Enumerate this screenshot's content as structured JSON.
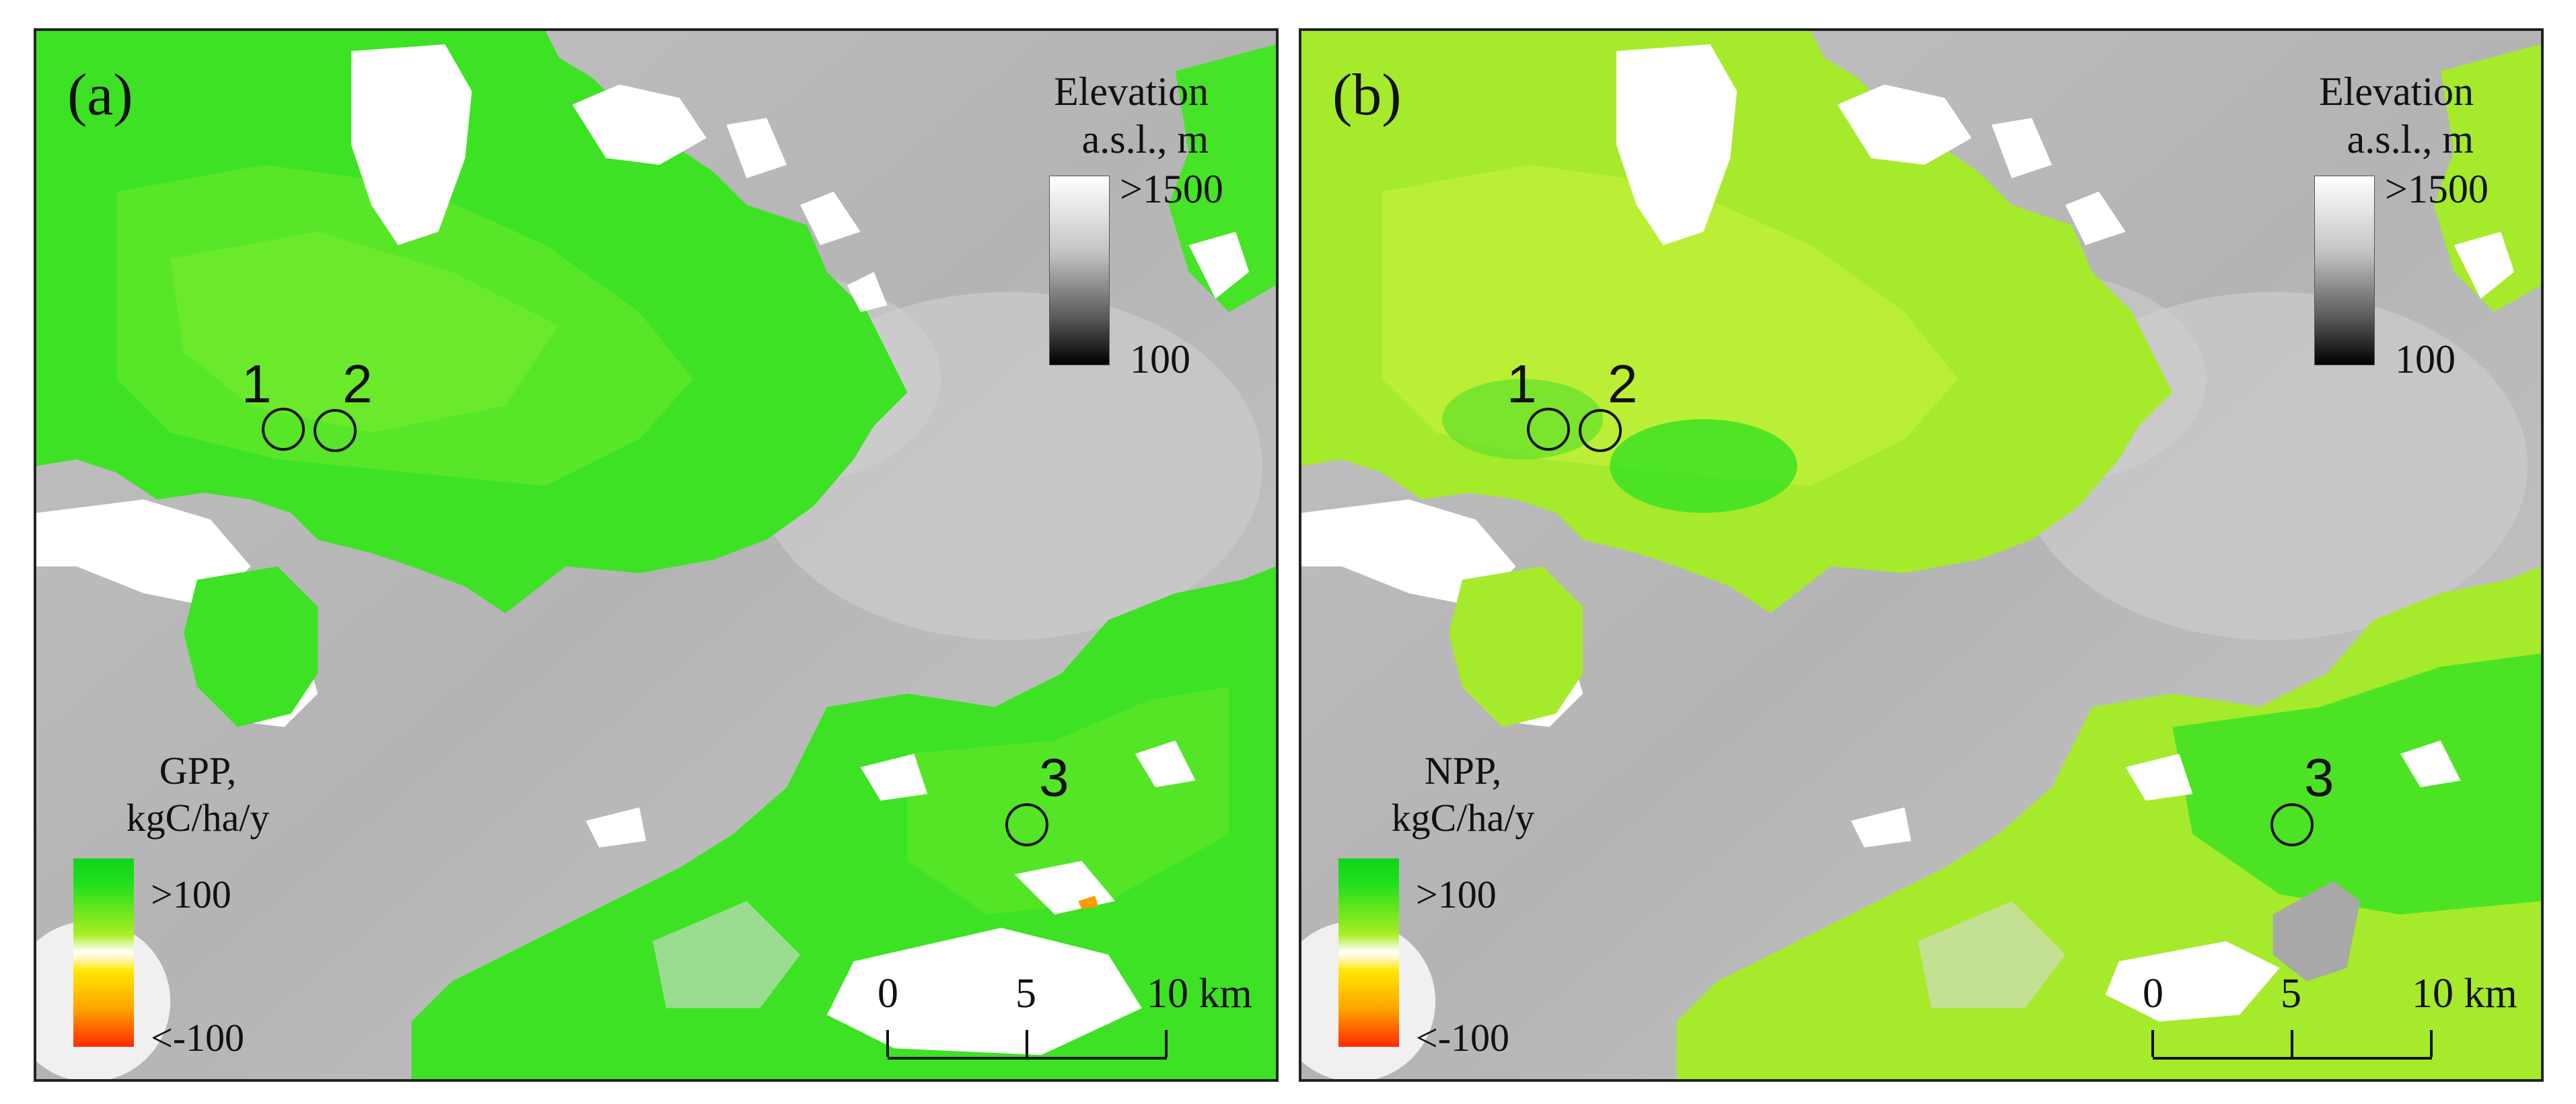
{
  "panels": [
    {
      "letter": "(a)",
      "elevation_legend": {
        "title_line1": "Elevation",
        "title_line2": "a.s.l., m",
        "max_label": ">1500",
        "min_label": "100"
      },
      "productivity_legend": {
        "title_line1": "GPP,",
        "title_line2": "kgC/ha/y",
        "max_label": ">100",
        "min_label": "<-100"
      },
      "sites": [
        "1",
        "2",
        "3"
      ],
      "scale_bar": {
        "labels": [
          "0",
          "5",
          "10 km"
        ]
      }
    },
    {
      "letter": "(b)",
      "elevation_legend": {
        "title_line1": "Elevation",
        "title_line2": "a.s.l., m",
        "max_label": ">1500",
        "min_label": "100"
      },
      "productivity_legend": {
        "title_line1": "NPP,",
        "title_line2": "kgC/ha/y",
        "max_label": ">100",
        "min_label": "<-100"
      },
      "sites": [
        "1",
        "2",
        "3"
      ],
      "scale_bar": {
        "labels": [
          "0",
          "5",
          "10 km"
        ]
      }
    }
  ],
  "colors": {
    "terrain_gray": "#b8b8b8",
    "terrain_light": "#d6d6d6",
    "vegetation_bright": "#33e021",
    "vegetation_yellow": "#b9ee2a",
    "no_data_white": "#ffffff",
    "legend_high": "#10d41a",
    "legend_low": "#ff2a00"
  }
}
